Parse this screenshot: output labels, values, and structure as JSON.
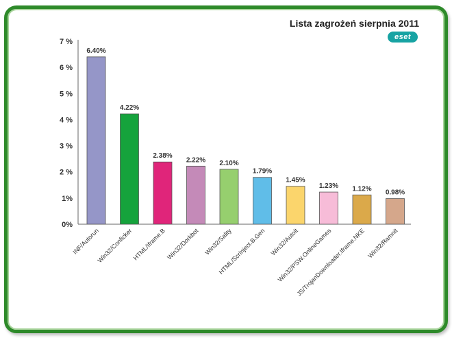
{
  "chart_data": {
    "type": "bar",
    "title": "Lista zagrożeń sierpnia 2011",
    "logo_text": "eset",
    "categories": [
      "INF/Autorun",
      "Win32/Conficker",
      "HTML/Iframe.B",
      "Win32/Dorkbot",
      "Win32/Sality",
      "HTML/ScrInject.B.Gen",
      "Win32/Autoit",
      "Win32/PSW.OnlineGames",
      "JS/TrojanDownloader.Iframe.NKE",
      "Win32/Ramnit"
    ],
    "values": [
      6.4,
      4.22,
      2.38,
      2.22,
      2.1,
      1.79,
      1.45,
      1.23,
      1.12,
      0.98
    ],
    "value_labels": [
      "6.40%",
      "4.22%",
      "2.38%",
      "2.22%",
      "2.10%",
      "1.79%",
      "1.45%",
      "1.23%",
      "1.12%",
      "0.98%"
    ],
    "colors": [
      "#9596c8",
      "#15a33c",
      "#e0257a",
      "#c48ab8",
      "#96cf6e",
      "#60bde8",
      "#fbd56c",
      "#f7bcd8",
      "#dba94a",
      "#d5a78b"
    ],
    "yticks": [
      "0%",
      "1%",
      "2 %",
      "3 %",
      "4 %",
      "5 %",
      "6 %",
      "7 %"
    ],
    "ylim": [
      0,
      7
    ],
    "xlabel": "",
    "ylabel": "",
    "grid": false,
    "legend": "none"
  },
  "frame_color": "#2e8a2a"
}
